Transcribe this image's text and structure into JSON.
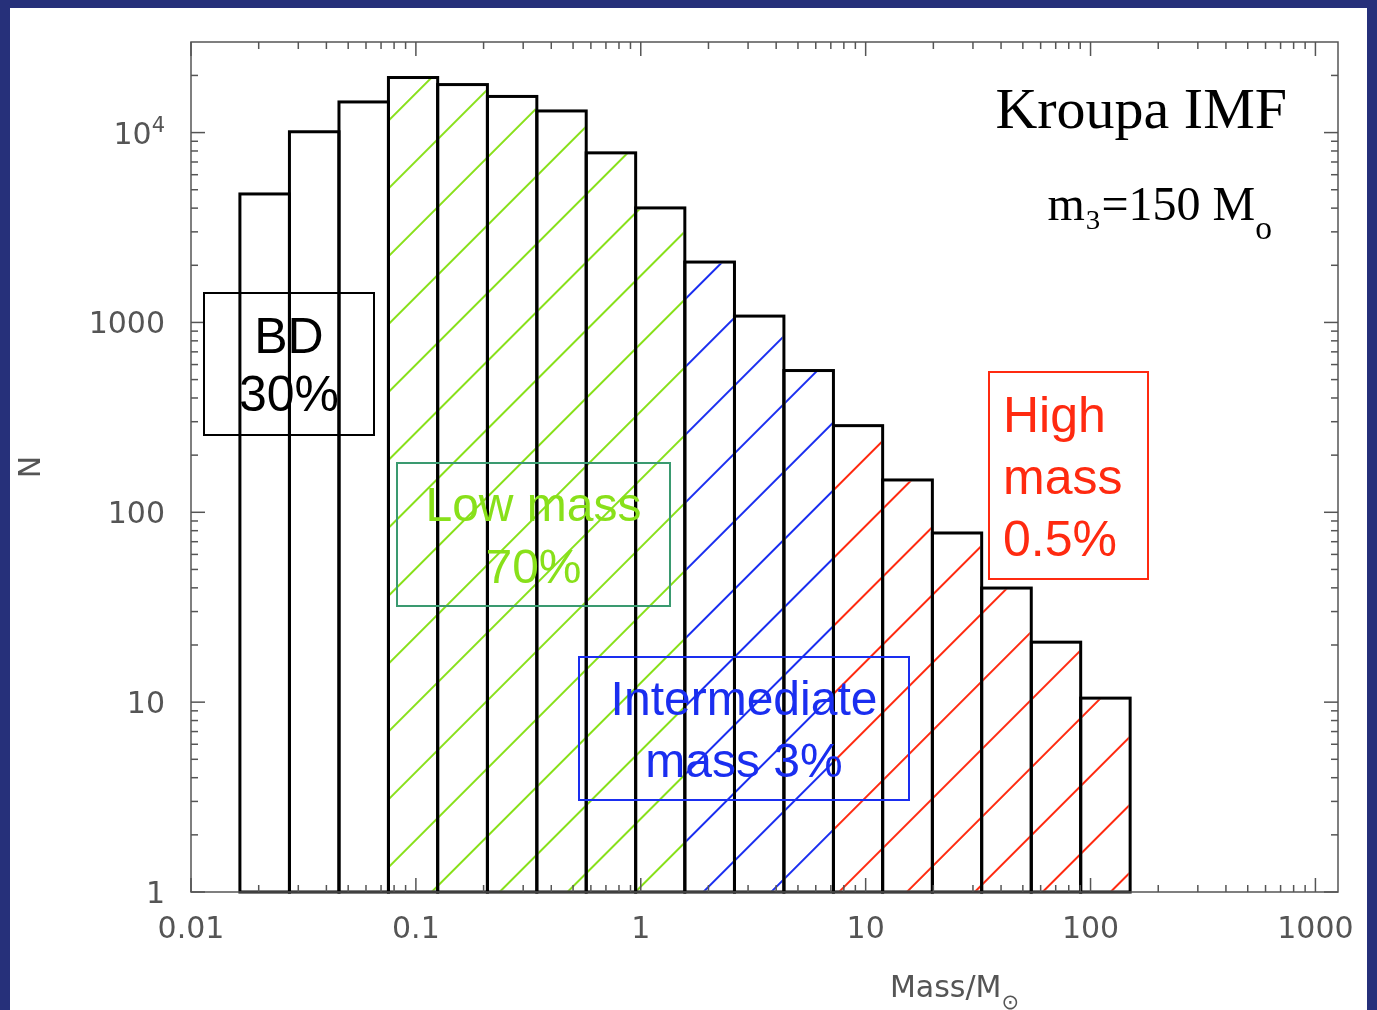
{
  "chart_data": {
    "type": "histogram",
    "title": "Kroupa IMF",
    "subtitle": "m₃=150 M$_{o}$",
    "xlabel": "Mass/M$_{⊙}$",
    "ylabel": "N",
    "log": "xy",
    "grid": false,
    "color": "#000000",
    "bins": [
      0.0165,
      0.0274,
      0.0455,
      0.0755,
      0.125,
      0.208,
      0.345,
      0.572,
      0.949,
      1.57,
      2.61,
      4.33,
      7.19,
      11.9,
      19.8,
      32.8,
      54.5,
      90.4,
      150
    ],
    "values": [
      4750,
      10100,
      14500,
      19500,
      17900,
      15500,
      13000,
      7820,
      4010,
      2080,
      1080,
      558,
      286,
      148,
      77.8,
      39.9,
      20.7,
      10.5
    ],
    "bands": [
      {
        "axis": "x",
        "from": 0.0755,
        "to": 1.57,
        "label": "Low mass\n70%",
        "color": "#88e01a"
      },
      {
        "axis": "x",
        "from": 1.57,
        "to": 7.19,
        "label": "Intermediate\nmass 3%",
        "color": "#1a2ef0"
      },
      {
        "axis": "x",
        "from": 7.19,
        "to": 150,
        "label": "High\nmass\n0.5%",
        "color": "#ff2a10"
      }
    ],
    "annotations": [
      "BD\n30%"
    ],
    "xlim": [
      0.01,
      1260
    ],
    "ylim": [
      1,
      30000
    ],
    "xticks": [
      {
        "value": 0.01,
        "label": "0.01"
      },
      {
        "value": 0.02,
        "label": null
      },
      {
        "value": 0.03,
        "label": null
      },
      {
        "value": 0.04,
        "label": null
      },
      {
        "value": 0.05,
        "label": null
      },
      {
        "value": 0.06,
        "label": null
      },
      {
        "value": 0.07,
        "label": null
      },
      {
        "value": 0.08,
        "label": null
      },
      {
        "value": 0.09,
        "label": null
      },
      {
        "value": 0.1,
        "label": "0.1"
      },
      {
        "value": 0.2,
        "label": null
      },
      {
        "value": 0.3,
        "label": null
      },
      {
        "value": 0.4,
        "label": null
      },
      {
        "value": 0.5,
        "label": null
      },
      {
        "value": 0.6,
        "label": null
      },
      {
        "value": 0.7,
        "label": null
      },
      {
        "value": 0.8,
        "label": null
      },
      {
        "value": 0.9,
        "label": null
      },
      1,
      {
        "value": 2,
        "label": null
      },
      {
        "value": 3,
        "label": null
      },
      {
        "value": 4,
        "label": null
      },
      {
        "value": 5,
        "label": null
      },
      {
        "value": 6,
        "label": null
      },
      {
        "value": 7,
        "label": null
      },
      {
        "value": 8,
        "label": null
      },
      {
        "value": 9,
        "label": null
      },
      10,
      {
        "value": 20,
        "label": null
      },
      {
        "value": 30,
        "label": null
      },
      {
        "value": 40,
        "label": null
      },
      {
        "value": 50,
        "label": null
      },
      {
        "value": 60,
        "label": null
      },
      {
        "value": 70,
        "label": null
      },
      {
        "value": 80,
        "label": null
      },
      {
        "value": 90,
        "label": null
      },
      100,
      {
        "value": 200,
        "label": null
      },
      {
        "value": 300,
        "label": null
      },
      {
        "value": 400,
        "label": null
      },
      {
        "value": 500,
        "label": null
      },
      {
        "value": 600,
        "label": null
      },
      {
        "value": 700,
        "label": null
      },
      {
        "value": 800,
        "label": null
      },
      {
        "value": 900,
        "label": null
      },
      1000
    ],
    "yticks": [
      1,
      {
        "value": 2,
        "label": null
      },
      {
        "value": 3,
        "label": null
      },
      {
        "value": 4,
        "label": null
      },
      {
        "value": 5,
        "label": null
      },
      {
        "value": 6,
        "label": null
      },
      {
        "value": 7,
        "label": null
      },
      {
        "value": 8,
        "label": null
      },
      {
        "value": 9,
        "label": null
      },
      10,
      {
        "value": 20,
        "label": null
      },
      {
        "value": 30,
        "label": null
      },
      {
        "value": 40,
        "label": null
      },
      {
        "value": 50,
        "label": null
      },
      {
        "value": 60,
        "label": null
      },
      {
        "value": 70,
        "label": null
      },
      {
        "value": 80,
        "label": null
      },
      {
        "value": 90,
        "label": null
      },
      100,
      {
        "value": 200,
        "label": null
      },
      {
        "value": 300,
        "label": null
      },
      {
        "value": 400,
        "label": null
      },
      {
        "value": 500,
        "label": null
      },
      {
        "value": 600,
        "label": null
      },
      {
        "value": 700,
        "label": null
      },
      {
        "value": 800,
        "label": null
      },
      {
        "value": 900,
        "label": null
      },
      1000,
      {
        "value": 2000,
        "label": null
      },
      {
        "value": 3000,
        "label": null
      },
      {
        "value": 4000,
        "label": null
      },
      {
        "value": 5000,
        "label": null
      },
      {
        "value": 6000,
        "label": null
      },
      {
        "value": 7000,
        "label": null
      },
      {
        "value": 8000,
        "label": null
      },
      {
        "value": 9000,
        "label": null
      },
      {
        "value": 10000,
        "label": "10$^{4}$"
      },
      {
        "value": 20000,
        "label": null
      }
    ]
  }
}
